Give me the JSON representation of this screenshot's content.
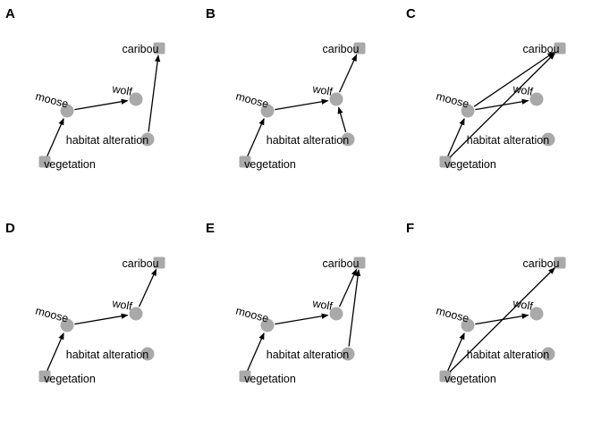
{
  "colors": {
    "node": "#a9a9a9",
    "edge": "#000000",
    "background": "#ffffff"
  },
  "node_labels": {
    "caribou": "caribou",
    "wolf": "wolf",
    "moose": "moose",
    "habitat": "habitat alteration",
    "vegetation": "vegetation"
  },
  "panels": [
    {
      "label": "A",
      "edges": [
        [
          "vegetation",
          "moose"
        ],
        [
          "moose",
          "wolf"
        ],
        [
          "habitat",
          "caribou"
        ]
      ]
    },
    {
      "label": "B",
      "edges": [
        [
          "vegetation",
          "moose"
        ],
        [
          "moose",
          "wolf"
        ],
        [
          "habitat",
          "wolf"
        ],
        [
          "wolf",
          "caribou"
        ]
      ]
    },
    {
      "label": "C",
      "edges": [
        [
          "vegetation",
          "moose"
        ],
        [
          "moose",
          "wolf"
        ],
        [
          "moose",
          "caribou"
        ],
        [
          "vegetation",
          "caribou"
        ]
      ]
    },
    {
      "label": "D",
      "edges": [
        [
          "vegetation",
          "moose"
        ],
        [
          "moose",
          "wolf"
        ],
        [
          "wolf",
          "caribou"
        ]
      ]
    },
    {
      "label": "E",
      "edges": [
        [
          "vegetation",
          "moose"
        ],
        [
          "moose",
          "wolf"
        ],
        [
          "wolf",
          "caribou"
        ],
        [
          "habitat",
          "caribou"
        ]
      ]
    },
    {
      "label": "F",
      "edges": [
        [
          "vegetation",
          "moose"
        ],
        [
          "moose",
          "wolf"
        ],
        [
          "vegetation",
          "caribou"
        ]
      ]
    }
  ]
}
